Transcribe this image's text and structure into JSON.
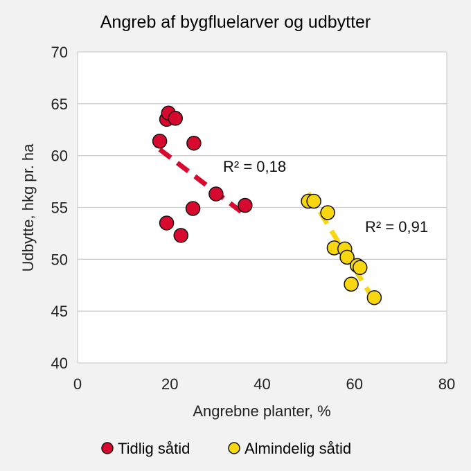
{
  "chart_data": {
    "type": "scatter",
    "title": "Angreb af bygfluelarver og udbytter",
    "xlabel": "Angrebne planter, %",
    "ylabel": "Udbytte, hkg pr. ha",
    "xlim": [
      0,
      80
    ],
    "ylim": [
      40,
      70
    ],
    "xticks": [
      0,
      20,
      40,
      60,
      80
    ],
    "yticks": [
      40,
      45,
      50,
      55,
      60,
      65,
      70
    ],
    "grid": "horizontal",
    "legend_position": "bottom",
    "series": [
      {
        "name": "Tidlig såtid",
        "color": "#d7092f",
        "points": [
          {
            "x": 17.8,
            "y": 61.4
          },
          {
            "x": 19.3,
            "y": 63.5
          },
          {
            "x": 19.7,
            "y": 64.1
          },
          {
            "x": 21.2,
            "y": 63.6
          },
          {
            "x": 25.2,
            "y": 61.2
          },
          {
            "x": 30.0,
            "y": 56.3
          },
          {
            "x": 36.3,
            "y": 55.2
          },
          {
            "x": 25.0,
            "y": 54.9
          },
          {
            "x": 19.3,
            "y": 53.5
          },
          {
            "x": 22.4,
            "y": 52.3
          }
        ],
        "trendline": {
          "x": [
            17.8,
            36.3
          ],
          "y": [
            60.6,
            54.3
          ]
        },
        "r2_label": "R² = 0,18"
      },
      {
        "name": "Almindelig såtid",
        "color": "#f8d710",
        "points": [
          {
            "x": 50.0,
            "y": 55.6
          },
          {
            "x": 51.2,
            "y": 55.6
          },
          {
            "x": 54.2,
            "y": 54.5
          },
          {
            "x": 55.6,
            "y": 51.1
          },
          {
            "x": 57.9,
            "y": 51.0
          },
          {
            "x": 58.4,
            "y": 50.2
          },
          {
            "x": 60.6,
            "y": 49.4
          },
          {
            "x": 61.2,
            "y": 49.2
          },
          {
            "x": 59.3,
            "y": 47.6
          },
          {
            "x": 64.3,
            "y": 46.3
          }
        ],
        "trendline": {
          "x": [
            50.0,
            64.3
          ],
          "y": [
            56.4,
            46.0
          ]
        },
        "r2_label": "R² = 0,91"
      }
    ]
  }
}
